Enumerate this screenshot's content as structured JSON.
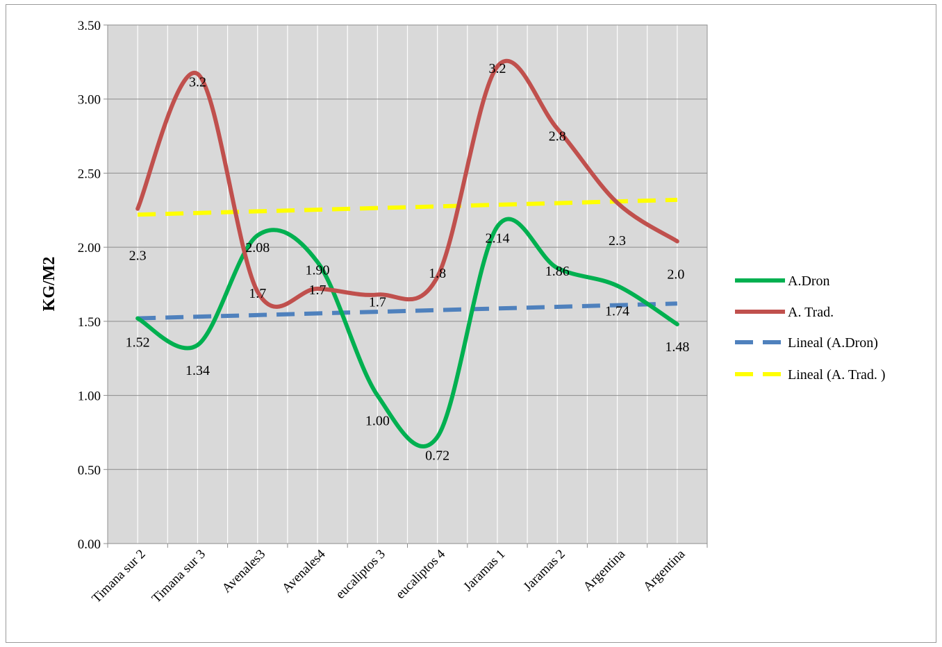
{
  "chart_data": {
    "type": "line",
    "title": "",
    "xlabel": "",
    "ylabel": "KG/M2",
    "ylim": [
      0,
      3.5
    ],
    "yticks": [
      "0.00",
      "0.50",
      "1.00",
      "1.50",
      "2.00",
      "2.50",
      "3.00",
      "3.50"
    ],
    "grid": true,
    "smooth": true,
    "legend_position": "right",
    "categories": [
      "Timana sur 2",
      "Timana sur 3",
      "Avenales3",
      "Avenales4",
      "eucaliptos 3",
      "eucaliptos 4",
      "Jaramas 1",
      "Jaramas 2",
      "Argentina",
      "Argentina"
    ],
    "series": [
      {
        "name": "A.Dron",
        "color": "#00b050",
        "values": [
          1.52,
          1.34,
          2.08,
          1.9,
          1.0,
          0.72,
          2.14,
          1.86,
          1.74,
          1.48
        ],
        "labels": [
          "1.52",
          "1.34",
          "2.08",
          "1.90",
          "1.00",
          "0.72",
          "2.14",
          "1.86",
          "1.74",
          "1.48"
        ]
      },
      {
        "name": "A. Trad.",
        "color": "#c0504d",
        "values": [
          2.26,
          3.17,
          1.7,
          1.72,
          1.68,
          1.8,
          3.22,
          2.8,
          2.3,
          2.04
        ],
        "labels": [
          "2.3",
          "3.2",
          "1.7",
          "1.7",
          "1.7",
          "1.8",
          "3.2",
          "2.8",
          "2.3",
          "2.0"
        ]
      }
    ],
    "trendlines": [
      {
        "name": "Lineal (A.Dron)",
        "color": "#4f81bd",
        "start": 1.52,
        "end": 1.62
      },
      {
        "name": "Lineal (A. Trad. )",
        "color": "#ffff00",
        "start": 2.22,
        "end": 2.32
      }
    ]
  }
}
